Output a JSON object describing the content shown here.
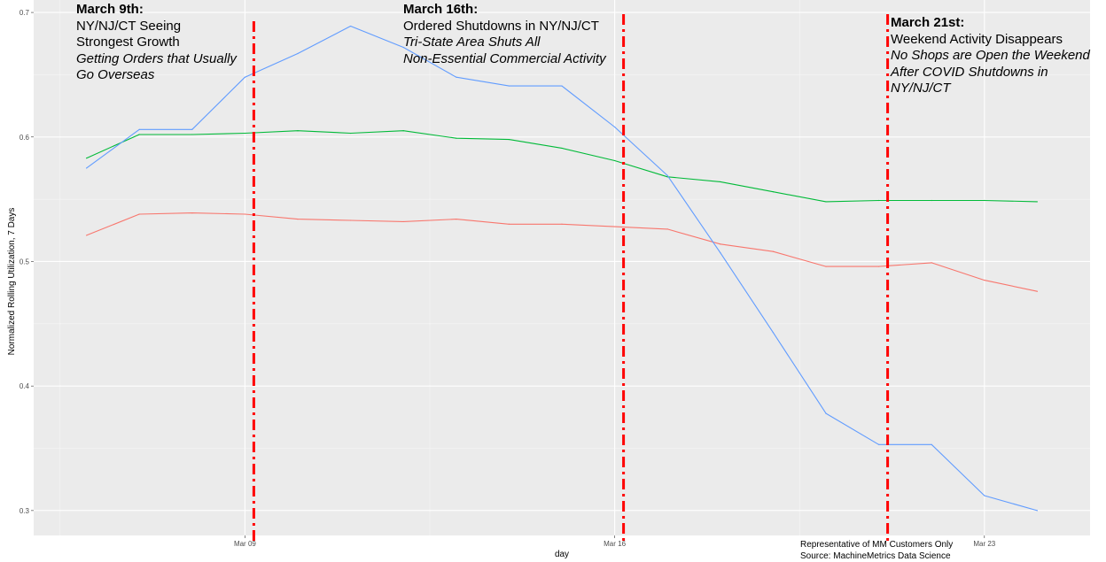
{
  "chart_data": {
    "type": "line",
    "xlabel": "day",
    "ylabel": "Normalized Rolling Utilization, 7 Days",
    "x_ticks": [
      "Mar 09",
      "Mar 16",
      "Mar 23"
    ],
    "y_ticks": [
      "0.3",
      "0.4",
      "0.5",
      "0.6",
      "0.7"
    ],
    "ylim": [
      0.28,
      0.71
    ],
    "xlim": [
      "2020-03-05",
      "2020-03-25"
    ],
    "grid": true,
    "x": [
      "2020-03-06",
      "2020-03-07",
      "2020-03-08",
      "2020-03-09",
      "2020-03-10",
      "2020-03-11",
      "2020-03-12",
      "2020-03-13",
      "2020-03-14",
      "2020-03-15",
      "2020-03-16",
      "2020-03-17",
      "2020-03-18",
      "2020-03-19",
      "2020-03-20",
      "2020-03-21",
      "2020-03-22",
      "2020-03-23",
      "2020-03-24"
    ],
    "series": [
      {
        "color": "#F8766D",
        "values": [
          0.521,
          0.538,
          0.539,
          0.538,
          0.534,
          0.533,
          0.532,
          0.534,
          0.53,
          0.53,
          0.528,
          0.526,
          0.514,
          0.508,
          0.496,
          0.496,
          0.499,
          0.485,
          0.476
        ]
      },
      {
        "color": "#00BA38",
        "values": [
          0.583,
          0.602,
          0.602,
          0.603,
          0.605,
          0.603,
          0.605,
          0.599,
          0.598,
          0.591,
          0.581,
          0.568,
          0.564,
          0.556,
          0.548,
          0.549,
          0.549,
          0.549,
          0.548
        ]
      },
      {
        "color": "#619CFF",
        "values": [
          0.575,
          0.606,
          0.606,
          0.648,
          0.667,
          0.689,
          0.672,
          0.648,
          0.641,
          0.641,
          0.608,
          0.569,
          0.507,
          0.443,
          0.378,
          0.353,
          0.353,
          0.312,
          0.3
        ]
      }
    ],
    "vlines": [
      "2020-03-09",
      "2020-03-16",
      "2020-03-21"
    ],
    "vline_color": "#FF0000"
  },
  "annotations": [
    {
      "heading": "March 9th:",
      "lines": [
        {
          "text": "NY/NJ/CT Seeing",
          "italic": false
        },
        {
          "text": "Strongest Growth",
          "italic": false
        },
        {
          "text": "Getting Orders that Usually",
          "italic": true
        },
        {
          "text": "Go Overseas",
          "italic": true
        }
      ]
    },
    {
      "heading": "March 16th:",
      "lines": [
        {
          "text": "Ordered Shutdowns in NY/NJ/CT",
          "italic": false
        },
        {
          "text": "Tri-State Area Shuts All",
          "italic": true
        },
        {
          "text": "Non-Essential Commercial Activity",
          "italic": true
        }
      ]
    },
    {
      "heading": "March 21st:",
      "lines": [
        {
          "text": "Weekend Activity Disappears",
          "italic": false
        },
        {
          "text": "No Shops are Open the Weekend",
          "italic": true
        },
        {
          "text": "After COVID Shutdowns in",
          "italic": true
        },
        {
          "text": "NY/NJ/CT",
          "italic": true
        }
      ]
    }
  ],
  "footer": {
    "line1": "Representative of MM Customers Only",
    "line2": "Source: MachineMetrics Data Science"
  }
}
